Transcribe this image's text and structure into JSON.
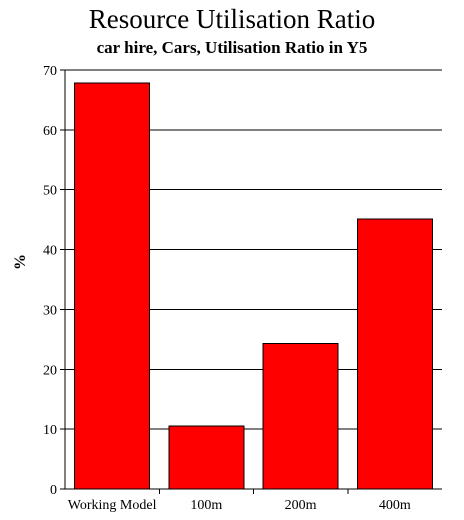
{
  "chart_data": {
    "type": "bar",
    "title": "Resource Utilisation Ratio",
    "subtitle": "car hire, Cars, Utilisation Ratio in Y5",
    "xlabel": "",
    "ylabel": "%",
    "categories": [
      "Working Model",
      "100m",
      "200m",
      "400m"
    ],
    "values": [
      67.8,
      10.5,
      24.3,
      45.1
    ],
    "ylim": [
      0,
      70
    ],
    "yticks": [
      0,
      10,
      20,
      30,
      40,
      50,
      60,
      70
    ],
    "grid": true,
    "bar_color": "#ff0000",
    "legend": "none"
  }
}
